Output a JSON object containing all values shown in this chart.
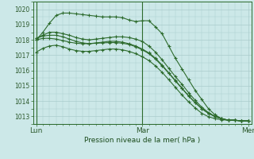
{
  "title": "",
  "xlabel": "Pression niveau de la mer( hPa )",
  "ylabel": "",
  "bg_color": "#cce8e8",
  "grid_color": "#aacccc",
  "line_color": "#2d6b2d",
  "ylim": [
    1012.5,
    1020.5
  ],
  "yticks": [
    1013,
    1014,
    1015,
    1016,
    1017,
    1018,
    1019,
    1020
  ],
  "xtick_labels": [
    "Lun",
    "Mar",
    "Mer"
  ],
  "xtick_positions": [
    0,
    16,
    32
  ],
  "n_points": 33,
  "series": [
    [
      1018.0,
      1018.5,
      1019.1,
      1019.6,
      1019.75,
      1019.75,
      1019.7,
      1019.65,
      1019.6,
      1019.55,
      1019.5,
      1019.5,
      1019.5,
      1019.45,
      1019.3,
      1019.2,
      1019.25,
      1019.25,
      1018.85,
      1018.4,
      1017.6,
      1016.8,
      1016.1,
      1015.4,
      1014.7,
      1014.1,
      1013.5,
      1013.1,
      1012.85,
      1012.75,
      1012.75,
      1012.7,
      1012.7
    ],
    [
      1018.1,
      1018.3,
      1018.5,
      1018.5,
      1018.4,
      1018.3,
      1018.15,
      1018.05,
      1018.0,
      1018.05,
      1018.1,
      1018.15,
      1018.2,
      1018.2,
      1018.15,
      1018.05,
      1017.9,
      1017.6,
      1017.2,
      1016.7,
      1016.15,
      1015.6,
      1015.1,
      1014.55,
      1014.05,
      1013.6,
      1013.25,
      1013.0,
      1012.85,
      1012.75,
      1012.75,
      1012.7,
      1012.7
    ],
    [
      1018.1,
      1018.25,
      1018.3,
      1018.3,
      1018.2,
      1018.05,
      1017.9,
      1017.8,
      1017.75,
      1017.8,
      1017.85,
      1017.9,
      1017.9,
      1017.85,
      1017.75,
      1017.6,
      1017.4,
      1017.15,
      1016.8,
      1016.35,
      1015.85,
      1015.35,
      1014.85,
      1014.35,
      1013.9,
      1013.5,
      1013.2,
      1012.98,
      1012.85,
      1012.75,
      1012.75,
      1012.7,
      1012.7
    ],
    [
      1017.2,
      1017.45,
      1017.6,
      1017.65,
      1017.55,
      1017.4,
      1017.3,
      1017.25,
      1017.25,
      1017.3,
      1017.35,
      1017.4,
      1017.4,
      1017.35,
      1017.25,
      1017.1,
      1016.9,
      1016.65,
      1016.3,
      1015.88,
      1015.4,
      1014.9,
      1014.4,
      1013.95,
      1013.55,
      1013.2,
      1012.98,
      1012.85,
      1012.78,
      1012.75,
      1012.75,
      1012.7,
      1012.7
    ],
    [
      1018.0,
      1018.1,
      1018.1,
      1018.05,
      1017.95,
      1017.85,
      1017.78,
      1017.75,
      1017.75,
      1017.78,
      1017.8,
      1017.82,
      1017.82,
      1017.78,
      1017.7,
      1017.55,
      1017.35,
      1017.1,
      1016.75,
      1016.3,
      1015.82,
      1015.32,
      1014.82,
      1014.33,
      1013.9,
      1013.5,
      1013.2,
      1013.0,
      1012.85,
      1012.75,
      1012.75,
      1012.7,
      1012.7
    ]
  ]
}
